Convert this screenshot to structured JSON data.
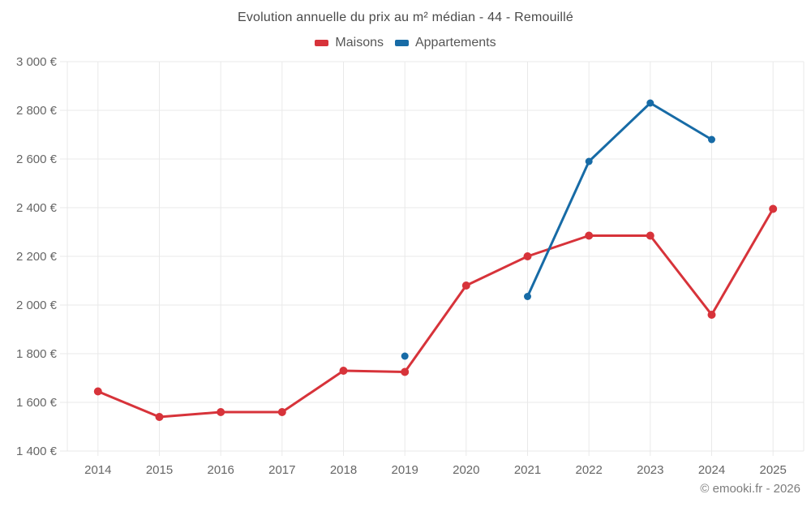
{
  "title": "Evolution annuelle du prix au m² médian - 44 - Remouillé",
  "footer": "© emooki.fr - 2026",
  "colors": {
    "maisons": "#d7333a",
    "appartements": "#176ba6",
    "grid": "#e9e9e9",
    "title_text": "#4a4a4a",
    "tick_text": "#666666",
    "footer_text": "#7d7d7d"
  },
  "chart_data": {
    "type": "line",
    "title": "Evolution annuelle du prix au m² médian - 44 - Remouillé",
    "xlabel": "",
    "ylabel": "",
    "categories": [
      "2014",
      "2015",
      "2016",
      "2017",
      "2018",
      "2019",
      "2020",
      "2021",
      "2022",
      "2023",
      "2024",
      "2025"
    ],
    "series": [
      {
        "name": "Maisons",
        "color": "#d7333a",
        "values": [
          1645,
          1540,
          1560,
          1560,
          1730,
          1725,
          2080,
          2200,
          2285,
          2285,
          1960,
          2395
        ],
        "marker_radius": 5,
        "line_width": 3
      },
      {
        "name": "Appartements",
        "color": "#176ba6",
        "values": [
          null,
          null,
          null,
          null,
          null,
          1790,
          null,
          2035,
          2590,
          2830,
          2680,
          null
        ],
        "marker_radius": 4.5,
        "line_width": 3
      }
    ],
    "ylim": [
      1400,
      3000
    ],
    "ytick_values": [
      1400,
      1600,
      1800,
      2000,
      2200,
      2400,
      2600,
      2800,
      3000
    ],
    "ytick_labels": [
      "1 400 €",
      "1 600 €",
      "1 800 €",
      "2 000 €",
      "2 200 €",
      "2 400 €",
      "2 600 €",
      "2 800 €",
      "3 000 €"
    ],
    "legend_position": "top",
    "grid": true
  }
}
